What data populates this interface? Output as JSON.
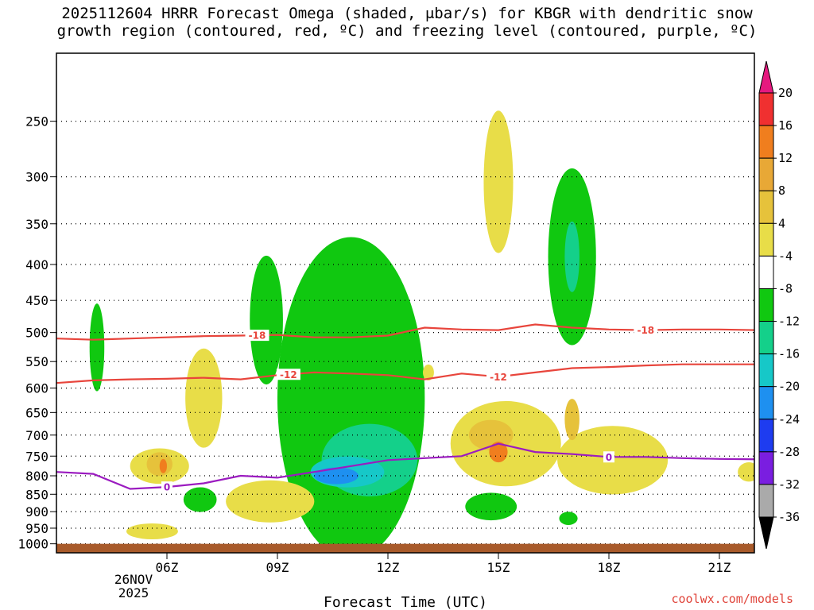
{
  "title": {
    "line1": "2025112604 HRRR Forecast Omega (shaded, μbar/s) for KBGR with dendritic snow",
    "line2": "growth region (contoured, red, ºC) and freezing level (contoured, purple, ºC)"
  },
  "source": "coolwx.com/models",
  "chart_data": {
    "type": "time-height cross section",
    "xlabel": "Forecast Time (UTC)",
    "x_ticks": [
      "06Z",
      "09Z",
      "12Z",
      "15Z",
      "18Z",
      "21Z"
    ],
    "x_tick_hours": [
      6,
      9,
      12,
      15,
      18,
      21
    ],
    "x_range_hours": [
      3.0,
      21.95
    ],
    "date_label": [
      "26NOV",
      "2025"
    ],
    "y_ticks": [
      250,
      300,
      350,
      400,
      450,
      500,
      550,
      600,
      650,
      700,
      750,
      800,
      850,
      900,
      950,
      1000
    ],
    "y_range_hpa": [
      200,
      1030
    ],
    "y_scale": "log-pressure",
    "grid": "dotted horizontal lines at pressure levels",
    "colorbar": {
      "labels": [
        "20",
        "16",
        "12",
        "8",
        "4",
        "-4",
        "-8",
        "-12",
        "-16",
        "-20",
        "-24",
        "-28",
        "-32",
        "-36"
      ],
      "colors": [
        "#f03030",
        "#f07e1e",
        "#e8a836",
        "#e6c23b",
        "#e8dd48",
        "#ffffff",
        "#10c810",
        "#14d08a",
        "#16c8c8",
        "#1e90f0",
        "#1e3cf0",
        "#7a1ee0",
        "#a00ac8",
        "#aaaaaa"
      ],
      "top_arrow_color": "#e6197f",
      "bottom_arrow_color": "#000000"
    },
    "dgz_isotherms_c": [
      -18,
      -12
    ],
    "dgz_color": "#e8453c",
    "dgz_series": [
      {
        "value": -18,
        "times": [
          3,
          4,
          5,
          6,
          7,
          8,
          9,
          10,
          11,
          12,
          13,
          14,
          15,
          16,
          17,
          18,
          19,
          20,
          21,
          22
        ],
        "pressure": [
          510,
          512,
          510,
          508,
          506,
          505,
          504,
          508,
          508,
          505,
          492,
          495,
          496,
          487,
          492,
          495,
          496,
          495,
          495,
          496
        ]
      },
      {
        "value": -12,
        "times": [
          3,
          4,
          5,
          6,
          7,
          8,
          9,
          10,
          11,
          12,
          13,
          14,
          15,
          16,
          17,
          18,
          19,
          20,
          21,
          22
        ],
        "pressure": [
          590,
          585,
          583,
          582,
          580,
          583,
          575,
          570,
          572,
          575,
          583,
          572,
          578,
          570,
          562,
          560,
          557,
          555,
          555,
          555
        ]
      }
    ],
    "freezing_level": {
      "value": 0,
      "color": "#9b1bc0",
      "times": [
        3,
        4,
        5,
        6,
        7,
        8,
        9,
        10,
        11,
        12,
        13,
        14,
        15,
        16,
        17,
        18,
        19,
        20,
        21,
        22
      ],
      "pressure": [
        790,
        795,
        835,
        830,
        820,
        800,
        805,
        790,
        775,
        760,
        755,
        750,
        720,
        740,
        745,
        752,
        752,
        755,
        757,
        758
      ]
    },
    "omega_regions": [
      {
        "level": "-4",
        "color": "#10c810",
        "center": [
          4.1,
          525
        ],
        "time_halfwidth": 0.2,
        "p_halfwidth": 75
      },
      {
        "level": "-4",
        "color": "#10c810",
        "center": [
          8.7,
          480
        ],
        "time_halfwidth": 0.45,
        "p_halfwidth": 100
      },
      {
        "level": "-4",
        "color": "#10c810",
        "center": [
          11.0,
          620
        ],
        "time_halfwidth": 2.0,
        "p_halfwidth": 300
      },
      {
        "level": "-4",
        "color": "#10c810",
        "center": [
          17.0,
          390
        ],
        "time_halfwidth": 0.65,
        "p_halfwidth": 110
      },
      {
        "level": "-4",
        "color": "#10c810",
        "center": [
          6.9,
          865
        ],
        "time_halfwidth": 0.45,
        "p_halfwidth": 35
      },
      {
        "level": "-4",
        "color": "#10c810",
        "center": [
          14.8,
          885
        ],
        "time_halfwidth": 0.7,
        "p_halfwidth": 40
      },
      {
        "level": "-4",
        "color": "#10c810",
        "center": [
          16.9,
          920
        ],
        "time_halfwidth": 0.25,
        "p_halfwidth": 20
      },
      {
        "level": "-8",
        "color": "#14d08a",
        "center": [
          11.5,
          760
        ],
        "time_halfwidth": 1.3,
        "p_halfwidth": 90
      },
      {
        "level": "-8",
        "color": "#14d08a",
        "center": [
          17.0,
          390
        ],
        "time_halfwidth": 0.2,
        "p_halfwidth": 45
      },
      {
        "level": "-12",
        "color": "#16c8c8",
        "center": [
          10.9,
          790
        ],
        "time_halfwidth": 1.0,
        "p_halfwidth": 40
      },
      {
        "level": "-16",
        "color": "#1e90f0",
        "center": [
          10.6,
          800
        ],
        "time_halfwidth": 0.6,
        "p_halfwidth": 22
      },
      {
        "level": "4",
        "color": "#e8dd48",
        "center": [
          7.0,
          620
        ],
        "time_halfwidth": 0.5,
        "p_halfwidth": 100
      },
      {
        "level": "4",
        "color": "#e8dd48",
        "center": [
          5.8,
          775
        ],
        "time_halfwidth": 0.8,
        "p_halfwidth": 45
      },
      {
        "level": "4",
        "color": "#e8dd48",
        "center": [
          8.8,
          870
        ],
        "time_halfwidth": 1.2,
        "p_halfwidth": 60
      },
      {
        "level": "4",
        "color": "#e8dd48",
        "center": [
          15.0,
          305
        ],
        "time_halfwidth": 0.4,
        "p_halfwidth": 70
      },
      {
        "level": "4",
        "color": "#e8dd48",
        "center": [
          13.1,
          570
        ],
        "time_halfwidth": 0.15,
        "p_halfwidth": 15
      },
      {
        "level": "4",
        "color": "#e8dd48",
        "center": [
          15.2,
          720
        ],
        "time_halfwidth": 1.5,
        "p_halfwidth": 100
      },
      {
        "level": "4",
        "color": "#e8dd48",
        "center": [
          18.1,
          760
        ],
        "time_halfwidth": 1.5,
        "p_halfwidth": 85
      },
      {
        "level": "4",
        "color": "#e8dd48",
        "center": [
          5.6,
          960
        ],
        "time_halfwidth": 0.7,
        "p_halfwidth": 25
      },
      {
        "level": "4",
        "color": "#e8dd48",
        "center": [
          21.8,
          790
        ],
        "time_halfwidth": 0.3,
        "p_halfwidth": 25
      },
      {
        "level": "8",
        "color": "#e6c23b",
        "center": [
          14.8,
          700
        ],
        "time_halfwidth": 0.6,
        "p_halfwidth": 35
      },
      {
        "level": "8",
        "color": "#e6c23b",
        "center": [
          17.0,
          665
        ],
        "time_halfwidth": 0.2,
        "p_halfwidth": 45
      },
      {
        "level": "8",
        "color": "#e6c23b",
        "center": [
          5.8,
          770
        ],
        "time_halfwidth": 0.35,
        "p_halfwidth": 30
      },
      {
        "level": "12",
        "color": "#f07e1e",
        "center": [
          15.0,
          740
        ],
        "time_halfwidth": 0.25,
        "p_halfwidth": 25
      },
      {
        "level": "12",
        "color": "#f07e1e",
        "center": [
          5.9,
          775
        ],
        "time_halfwidth": 0.1,
        "p_halfwidth": 18
      }
    ],
    "terrain": {
      "surface_pressure_hpa": 1000,
      "color": "#a85a2a"
    }
  }
}
